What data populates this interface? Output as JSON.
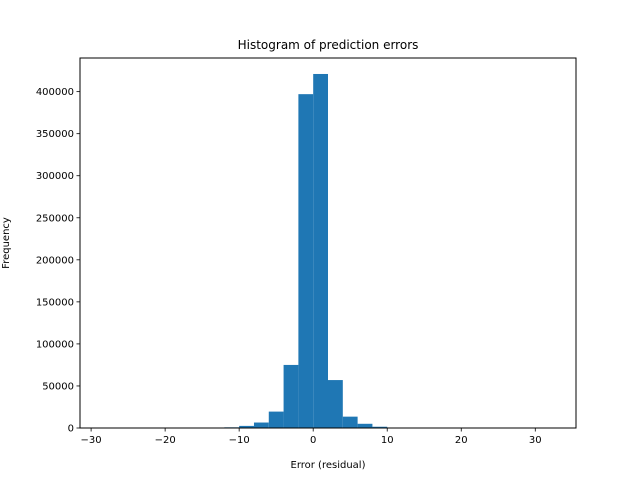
{
  "chart_data": {
    "type": "bar",
    "title": "Histogram of prediction errors",
    "xlabel": "Error (residual)",
    "ylabel": "Frequency",
    "xlim": [
      -31.5,
      35.5
    ],
    "ylim": [
      0,
      440000
    ],
    "xticks": [
      -30,
      -20,
      -10,
      0,
      10,
      20,
      30
    ],
    "yticks": [
      0,
      50000,
      100000,
      150000,
      200000,
      250000,
      300000,
      350000,
      400000
    ],
    "xtick_labels": [
      "−30",
      "−20",
      "−10",
      "0",
      "10",
      "20",
      "30"
    ],
    "ytick_labels": [
      "0",
      "50000",
      "100000",
      "150000",
      "200000",
      "250000",
      "300000",
      "350000",
      "400000"
    ],
    "bar_color": "#1f77b4",
    "grid": false,
    "bins": [
      {
        "x0": -12.0,
        "x1": -10.0,
        "count": 800
      },
      {
        "x0": -10.0,
        "x1": -8.0,
        "count": 2500
      },
      {
        "x0": -8.0,
        "x1": -6.0,
        "count": 6500
      },
      {
        "x0": -6.0,
        "x1": -4.0,
        "count": 19500
      },
      {
        "x0": -4.0,
        "x1": -2.0,
        "count": 75000
      },
      {
        "x0": -2.0,
        "x1": 0.0,
        "count": 397000
      },
      {
        "x0": 0.0,
        "x1": 2.0,
        "count": 421000
      },
      {
        "x0": 2.0,
        "x1": 4.0,
        "count": 57000
      },
      {
        "x0": 4.0,
        "x1": 6.0,
        "count": 13500
      },
      {
        "x0": 6.0,
        "x1": 8.0,
        "count": 5000
      },
      {
        "x0": 8.0,
        "x1": 10.0,
        "count": 1500
      },
      {
        "x0": 10.0,
        "x1": 12.0,
        "count": 400
      }
    ]
  }
}
